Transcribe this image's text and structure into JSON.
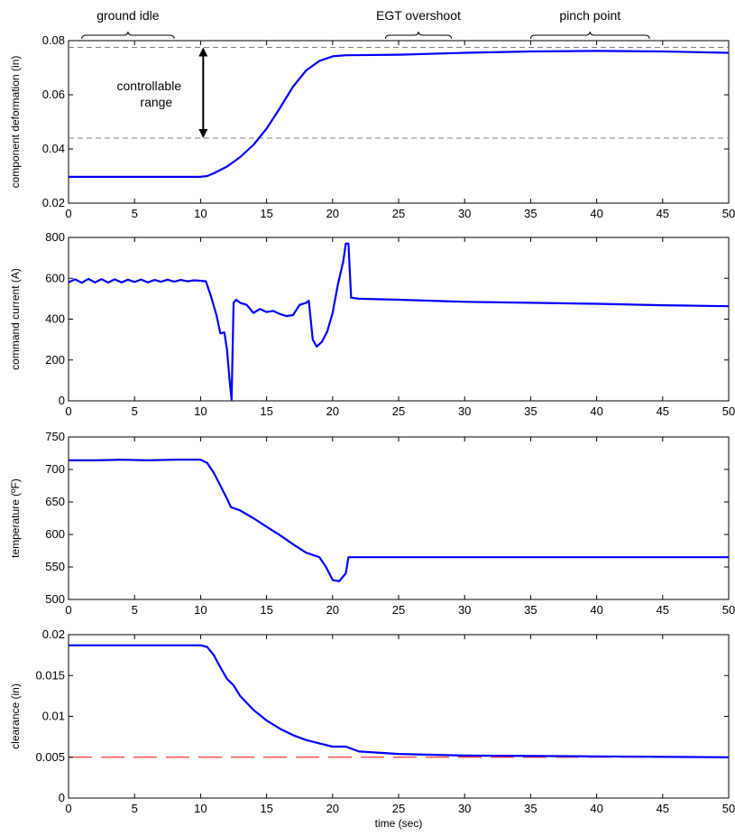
{
  "chart_data": [
    {
      "type": "line",
      "title": "",
      "xlabel": "",
      "ylabel": "component deformation (in)",
      "xlim": [
        0,
        50
      ],
      "ylim": [
        0.02,
        0.08
      ],
      "xticks": [
        0,
        5,
        10,
        15,
        20,
        25,
        30,
        35,
        40,
        45,
        50
      ],
      "xtick_labels": [
        "0",
        "5",
        "10",
        "15",
        "20",
        "25",
        "30",
        "35",
        "40",
        "45",
        "50"
      ],
      "yticks": [
        0.02,
        0.04,
        0.06,
        0.08
      ],
      "ytick_labels": [
        "0.02",
        "0.04",
        "0.06",
        "0.08"
      ],
      "grid": false,
      "series": [
        {
          "color": "#0000ff",
          "x": [
            0,
            10,
            10.5,
            11,
            12,
            13,
            14,
            15,
            16,
            17,
            18,
            19,
            20,
            21,
            25,
            30,
            35,
            40,
            45,
            50
          ],
          "y": [
            0.0297,
            0.0297,
            0.03,
            0.031,
            0.0335,
            0.037,
            0.0415,
            0.0475,
            0.055,
            0.063,
            0.069,
            0.0725,
            0.0742,
            0.0746,
            0.0748,
            0.0755,
            0.076,
            0.0762,
            0.076,
            0.0755
          ]
        }
      ],
      "reference_lines": [
        {
          "y": 0.0775,
          "style": "dashed",
          "color": "#808080"
        },
        {
          "y": 0.044,
          "style": "dashed",
          "color": "#808080"
        }
      ],
      "annotations": [
        {
          "text": "ground idle",
          "type": "brace",
          "x_from": 1,
          "x_to": 8
        },
        {
          "text": "EGT overshoot",
          "type": "brace",
          "x_from": 24,
          "x_to": 29
        },
        {
          "text": "pinch point",
          "type": "brace",
          "x_from": 35,
          "x_to": 44
        },
        {
          "text_lines": [
            "controllable",
            "range"
          ],
          "type": "double-arrow",
          "x": 10.2,
          "y_from": 0.0775,
          "y_to": 0.044
        }
      ]
    },
    {
      "type": "line",
      "title": "",
      "xlabel": "",
      "ylabel": "command current (A)",
      "xlim": [
        0,
        50
      ],
      "ylim": [
        0,
        800
      ],
      "xticks": [
        0,
        5,
        10,
        15,
        20,
        25,
        30,
        35,
        40,
        45,
        50
      ],
      "xtick_labels": [
        "0",
        "5",
        "10",
        "15",
        "20",
        "25",
        "30",
        "35",
        "40",
        "45",
        "50"
      ],
      "yticks": [
        0,
        200,
        400,
        600,
        800
      ],
      "ytick_labels": [
        "0",
        "200",
        "400",
        "600",
        "800"
      ],
      "grid": false,
      "series": [
        {
          "color": "#0000ff",
          "x": [
            0,
            0.5,
            1,
            1.5,
            2,
            2.5,
            3,
            3.5,
            4,
            4.5,
            5,
            5.5,
            6,
            6.5,
            7,
            7.5,
            8,
            8.5,
            9,
            9.5,
            10,
            10.4,
            10.8,
            11.2,
            11.5,
            11.8,
            12.0,
            12.2,
            12.35,
            12.5,
            12.7,
            13,
            13.5,
            14,
            14.5,
            15,
            15.5,
            16,
            16.5,
            17,
            17.5,
            18,
            18.2,
            18.5,
            18.8,
            19.2,
            19.6,
            20,
            20.4,
            20.8,
            21.0,
            21.2,
            21.4,
            22,
            25,
            30,
            35,
            40,
            45,
            50
          ],
          "y": [
            580,
            595,
            578,
            597,
            580,
            596,
            579,
            595,
            580,
            593,
            582,
            594,
            580,
            592,
            583,
            593,
            584,
            592,
            585,
            590,
            588,
            585,
            510,
            420,
            330,
            335,
            250,
            100,
            5,
            480,
            495,
            480,
            470,
            430,
            450,
            435,
            440,
            425,
            415,
            420,
            470,
            480,
            490,
            300,
            265,
            290,
            340,
            430,
            570,
            680,
            770,
            770,
            505,
            500,
            495,
            485,
            480,
            475,
            468,
            463
          ]
        }
      ]
    },
    {
      "type": "line",
      "title": "",
      "xlabel": "",
      "ylabel": "temperature (ºF)",
      "xlim": [
        0,
        50
      ],
      "ylim": [
        500,
        750
      ],
      "xticks": [
        0,
        5,
        10,
        15,
        20,
        25,
        30,
        35,
        40,
        45,
        50
      ],
      "xtick_labels": [
        "0",
        "5",
        "10",
        "15",
        "20",
        "25",
        "30",
        "35",
        "40",
        "45",
        "50"
      ],
      "yticks": [
        500,
        550,
        600,
        650,
        700,
        750
      ],
      "ytick_labels": [
        "500",
        "550",
        "600",
        "650",
        "700",
        "750"
      ],
      "grid": false,
      "series": [
        {
          "color": "#0000ff",
          "x": [
            0,
            2,
            4,
            6,
            8,
            10,
            10.5,
            11,
            11.5,
            12,
            12.3,
            13,
            14,
            15,
            16,
            17,
            18,
            19,
            19.5,
            20,
            20.5,
            21,
            21.2,
            22,
            30,
            40,
            50
          ],
          "y": [
            714,
            714,
            715,
            714,
            715,
            715,
            710,
            695,
            675,
            655,
            642,
            637,
            625,
            612,
            599,
            585,
            572,
            565,
            550,
            530,
            528,
            540,
            565,
            565,
            565,
            565,
            565
          ]
        }
      ]
    },
    {
      "type": "line",
      "title": "",
      "xlabel": "time (sec)",
      "ylabel": "clearance (in)",
      "xlim": [
        0,
        50
      ],
      "ylim": [
        0,
        0.02
      ],
      "xticks": [
        0,
        5,
        10,
        15,
        20,
        25,
        30,
        35,
        40,
        45,
        50
      ],
      "xtick_labels": [
        "0",
        "5",
        "10",
        "15",
        "20",
        "25",
        "30",
        "35",
        "40",
        "45",
        "50"
      ],
      "yticks": [
        0,
        0.005,
        0.01,
        0.015,
        0.02
      ],
      "ytick_labels": [
        "0",
        "0.005",
        "0.01",
        "0.015",
        "0.02"
      ],
      "grid": false,
      "series": [
        {
          "color": "#0000ff",
          "x": [
            0,
            10,
            10.5,
            11,
            11.5,
            12,
            12.5,
            13,
            14,
            15,
            16,
            17,
            18,
            19,
            20,
            21,
            22,
            25,
            30,
            40,
            50
          ],
          "y": [
            0.0187,
            0.0187,
            0.0185,
            0.0175,
            0.016,
            0.0146,
            0.0138,
            0.0125,
            0.0108,
            0.0095,
            0.0085,
            0.0077,
            0.0071,
            0.0067,
            0.0063,
            0.0063,
            0.0057,
            0.0054,
            0.0052,
            0.0051,
            0.005
          ]
        }
      ],
      "reference_lines": [
        {
          "y": 0.005,
          "style": "long-dash",
          "color": "#ff0000"
        }
      ]
    }
  ]
}
